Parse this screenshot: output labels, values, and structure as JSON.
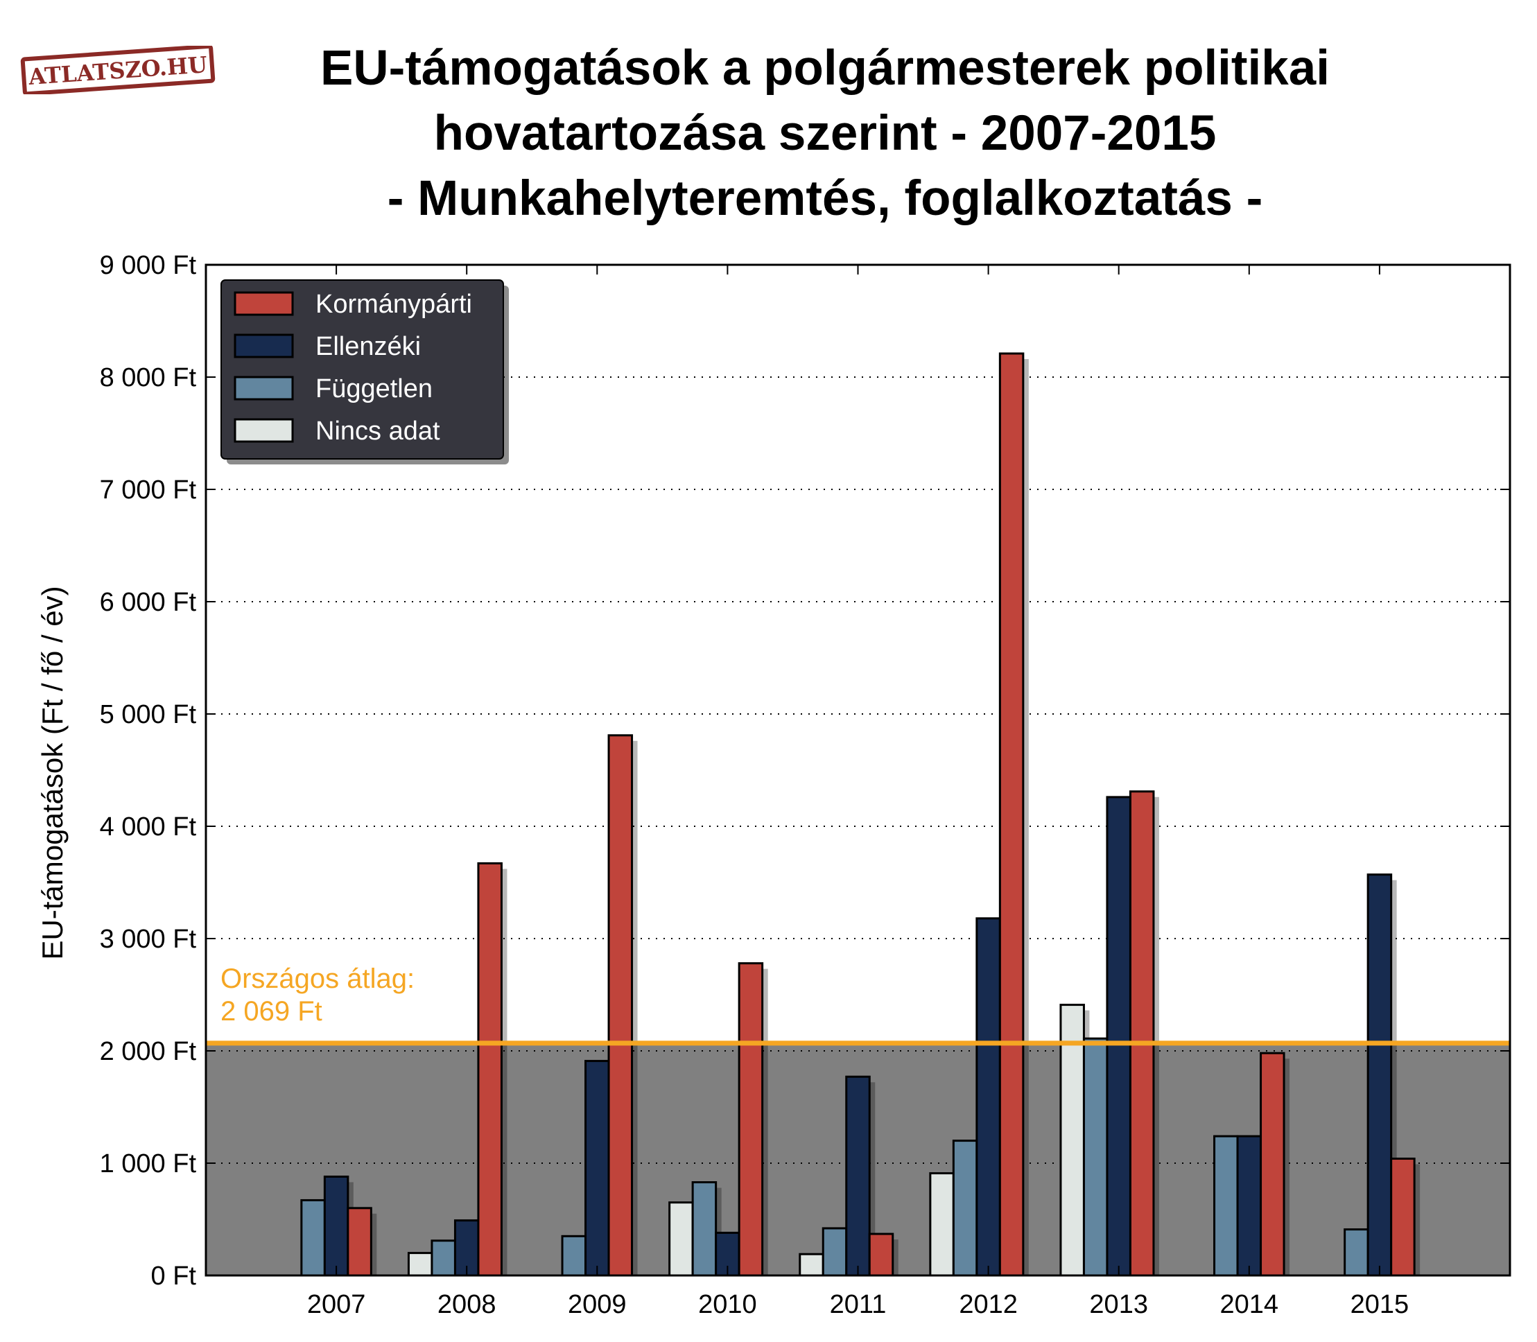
{
  "logo": {
    "text": "ATLATSZO.HU",
    "color": "#8b2a26"
  },
  "title": "EU-támogatások a polgármesterek politikai\nhovatartozása szerint - 2007-2015\n- Munkahelyteremtés, foglalkoztatás -",
  "colors": {
    "kormanyparti": "#c0443b",
    "ellenzeki": "#172b4f",
    "fuggetlen": "#62869f",
    "nincs_adat": "#e0e6e3",
    "average_line": "#f5a623",
    "below_average_fill": "#808080",
    "legend_bg": "#36363e"
  },
  "chart_data": {
    "type": "bar",
    "title": "EU-támogatások a polgármesterek politikai hovatartozása szerint - 2007-2015 - Munkahelyteremtés, foglalkoztatás -",
    "xlabel": "",
    "ylabel": "EU-támogatások (Ft / fő / év)",
    "ylim": [
      0,
      9000
    ],
    "yticks": [
      0,
      1000,
      2000,
      3000,
      4000,
      5000,
      6000,
      7000,
      8000,
      9000
    ],
    "ytick_labels": [
      "0 Ft",
      "1 000 Ft",
      "2 000 Ft",
      "3 000 Ft",
      "4 000 Ft",
      "5 000 Ft",
      "6 000 Ft",
      "7 000 Ft",
      "8 000 Ft",
      "9 000 Ft"
    ],
    "grid": "horizontal dotted",
    "legend_position": "top-left",
    "categories": [
      "2007",
      "2008",
      "2009",
      "2010",
      "2011",
      "2012",
      "2013",
      "2014",
      "2015"
    ],
    "series": [
      {
        "name": "Nincs adat",
        "color_key": "nincs_adat",
        "values": [
          null,
          200,
          null,
          650,
          190,
          910,
          2410,
          null,
          null
        ]
      },
      {
        "name": "Független",
        "color_key": "fuggetlen",
        "values": [
          670,
          310,
          350,
          830,
          420,
          1200,
          2110,
          1240,
          410
        ]
      },
      {
        "name": "Ellenzéki",
        "color_key": "ellenzeki",
        "values": [
          880,
          490,
          1910,
          380,
          1770,
          3180,
          4260,
          1240,
          3570
        ]
      },
      {
        "name": "Kormánypárti",
        "color_key": "kormanyparti",
        "values": [
          600,
          3670,
          4810,
          2780,
          370,
          8210,
          4310,
          1980,
          1040
        ]
      }
    ],
    "legend_order": [
      "Kormánypárti",
      "Ellenzéki",
      "Független",
      "Nincs adat"
    ],
    "reference_line": {
      "value": 2069,
      "label_line1": "Országos átlag:",
      "label_line2": "2 069 Ft"
    }
  }
}
